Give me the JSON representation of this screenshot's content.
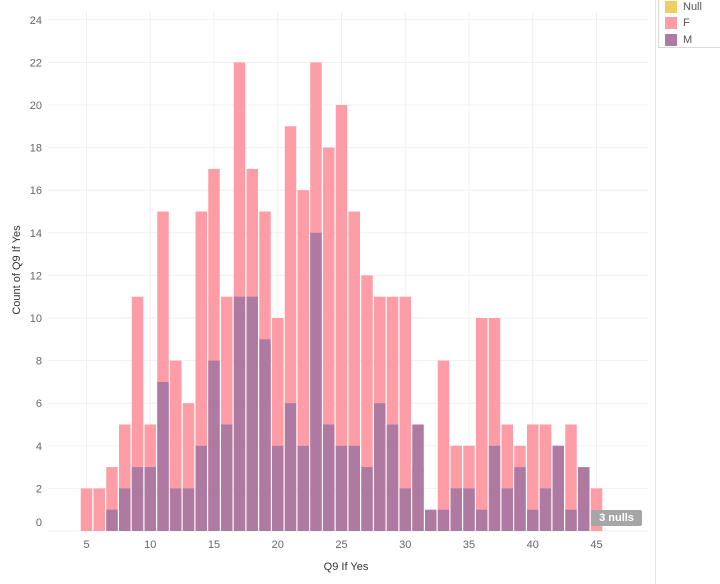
{
  "chart_data": {
    "type": "bar",
    "stacked": false,
    "overlap": true,
    "xlabel": "Q9 If Yes",
    "ylabel": "Count of Q9 If Yes",
    "x_ticks": [
      5,
      10,
      15,
      20,
      25,
      30,
      35,
      40,
      45
    ],
    "y_ticks": [
      0,
      2,
      4,
      6,
      8,
      10,
      12,
      14,
      16,
      18,
      20,
      22,
      24
    ],
    "xlim": [
      3,
      48
    ],
    "ylim": [
      0,
      24
    ],
    "grid": true,
    "legend_position": "top-right",
    "x": [
      5,
      6,
      7,
      8,
      9,
      10,
      11,
      12,
      13,
      14,
      15,
      16,
      17,
      18,
      19,
      20,
      21,
      22,
      23,
      24,
      25,
      26,
      27,
      28,
      29,
      30,
      31,
      32,
      33,
      34,
      35,
      36,
      37,
      38,
      39,
      40,
      41,
      42,
      43,
      44,
      45,
      46
    ],
    "series": [
      {
        "name": "F",
        "color": "#ff9da7",
        "values": [
          2,
          2,
          3,
          5,
          11,
          5,
          15,
          8,
          6,
          15,
          17,
          11,
          22,
          17,
          15,
          10,
          19,
          16,
          22,
          18,
          20,
          15,
          12,
          11,
          11,
          11,
          3,
          0,
          8,
          4,
          4,
          10,
          10,
          5,
          4,
          5,
          5,
          4,
          5,
          0,
          2,
          0
        ]
      },
      {
        "name": "M",
        "color": "#af7aa1",
        "values": [
          0,
          0,
          1,
          2,
          3,
          3,
          7,
          2,
          2,
          4,
          8,
          5,
          11,
          11,
          9,
          4,
          6,
          4,
          14,
          5,
          4,
          4,
          3,
          6,
          5,
          2,
          5,
          1,
          1,
          2,
          2,
          1,
          4,
          2,
          3,
          1,
          2,
          4,
          1,
          3,
          0,
          0
        ]
      }
    ],
    "legend": [
      {
        "label": "Null",
        "color": "#f1ce63"
      },
      {
        "label": "F",
        "color": "#ff9da7"
      },
      {
        "label": "M",
        "color": "#af7aa1"
      }
    ],
    "annotation": "3 nulls"
  }
}
